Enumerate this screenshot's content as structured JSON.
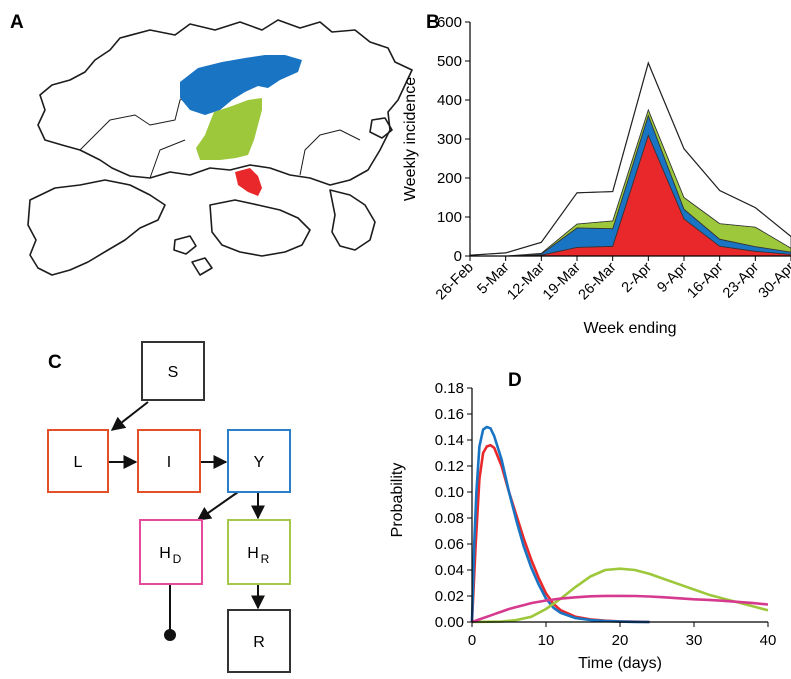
{
  "panels": {
    "a": "A",
    "b": "B",
    "c": "C",
    "d": "D"
  },
  "map": {
    "region_colors": {
      "blue": "#1a74c4",
      "green": "#9dc83c",
      "red": "#e8282a"
    }
  },
  "chart_data": [
    {
      "panel": "B",
      "type": "area",
      "xlabel": "Week ending",
      "ylabel": "Weekly incidence",
      "categories": [
        "26-Feb",
        "5-Mar",
        "12-Mar",
        "19-Mar",
        "26-Mar",
        "2-Apr",
        "9-Apr",
        "16-Apr",
        "23-Apr",
        "30-Apr"
      ],
      "ylim": [
        0,
        600
      ],
      "yticks": [
        0,
        100,
        200,
        300,
        400,
        500,
        600
      ],
      "stacked_bands": [
        {
          "color": "#e8282a",
          "values": [
            0,
            0,
            2,
            22,
            25,
            310,
            95,
            25,
            12,
            4
          ]
        },
        {
          "color": "#1a74c4",
          "values": [
            0,
            0,
            3,
            50,
            45,
            50,
            25,
            18,
            12,
            6
          ]
        },
        {
          "color": "#9dc83c",
          "values": [
            0,
            0,
            2,
            10,
            20,
            15,
            30,
            40,
            50,
            10
          ]
        },
        {
          "color": "#ffffff",
          "values": [
            2,
            8,
            28,
            80,
            75,
            120,
            125,
            85,
            50,
            30
          ]
        }
      ],
      "totals": [
        2,
        8,
        35,
        162,
        165,
        495,
        275,
        168,
        124,
        50
      ]
    },
    {
      "panel": "D",
      "type": "line",
      "xlabel": "Time (days)",
      "ylabel": "Probability",
      "xlim": [
        0,
        40
      ],
      "ylim": [
        0,
        0.18
      ],
      "xticks": [
        0,
        10,
        20,
        30,
        40
      ],
      "yticks": [
        "0.00",
        "0.02",
        "0.04",
        "0.06",
        "0.08",
        "0.10",
        "0.12",
        "0.14",
        "0.16",
        "0.18"
      ],
      "series": [
        {
          "color": "#e8282a",
          "x": [
            0,
            0.5,
            1,
            1.5,
            2,
            2.5,
            3,
            4,
            5,
            6,
            7,
            8,
            9,
            10,
            11,
            12,
            14,
            16,
            18,
            20,
            22,
            24
          ],
          "y": [
            0,
            0.06,
            0.11,
            0.13,
            0.135,
            0.136,
            0.134,
            0.12,
            0.1,
            0.082,
            0.064,
            0.048,
            0.034,
            0.022,
            0.014,
            0.009,
            0.004,
            0.002,
            0.001,
            0.0005,
            0.0002,
            0
          ]
        },
        {
          "color": "#1a74c4",
          "x": [
            0,
            0.3,
            0.6,
            1,
            1.5,
            2,
            2.5,
            3,
            4,
            5,
            6,
            7,
            8,
            9,
            10,
            11,
            12,
            14,
            16,
            18,
            20,
            22,
            24
          ],
          "y": [
            0,
            0.06,
            0.1,
            0.135,
            0.148,
            0.15,
            0.149,
            0.143,
            0.125,
            0.1,
            0.078,
            0.058,
            0.042,
            0.029,
            0.018,
            0.011,
            0.007,
            0.003,
            0.0015,
            0.0007,
            0.0003,
            0.0001,
            0
          ]
        },
        {
          "color": "#9dc83c",
          "x": [
            0,
            4,
            6,
            8,
            10,
            12,
            14,
            16,
            18,
            20,
            22,
            24,
            26,
            28,
            30,
            32,
            34,
            36,
            38,
            40
          ],
          "y": [
            0,
            0.0003,
            0.0015,
            0.004,
            0.01,
            0.018,
            0.027,
            0.035,
            0.04,
            0.041,
            0.04,
            0.037,
            0.033,
            0.029,
            0.025,
            0.021,
            0.018,
            0.015,
            0.012,
            0.009
          ]
        },
        {
          "color": "#d63a8e",
          "x": [
            0,
            1,
            2,
            3,
            4,
            5,
            6,
            7,
            8,
            10,
            12,
            14,
            16,
            18,
            20,
            22,
            24,
            26,
            28,
            30,
            32,
            34,
            36,
            38,
            40
          ],
          "y": [
            0,
            0.002,
            0.004,
            0.006,
            0.008,
            0.01,
            0.0115,
            0.013,
            0.0145,
            0.0165,
            0.018,
            0.019,
            0.0198,
            0.0201,
            0.0201,
            0.02,
            0.0196,
            0.019,
            0.0182,
            0.0175,
            0.017,
            0.0163,
            0.0155,
            0.0145,
            0.0135
          ]
        }
      ]
    }
  ],
  "diagram": {
    "nodes": [
      {
        "id": "S",
        "label": "S",
        "sub": "",
        "color": "#333333"
      },
      {
        "id": "L",
        "label": "L",
        "sub": "",
        "color": "#e2502a"
      },
      {
        "id": "I",
        "label": "I",
        "sub": "",
        "color": "#e2502a"
      },
      {
        "id": "Y",
        "label": "Y",
        "sub": "",
        "color": "#2b7fc8"
      },
      {
        "id": "HD",
        "label": "H",
        "sub": "D",
        "color": "#e64a9b"
      },
      {
        "id": "HR",
        "label": "H",
        "sub": "R",
        "color": "#a5c84a"
      },
      {
        "id": "R",
        "label": "R",
        "sub": "",
        "color": "#333333"
      }
    ]
  }
}
